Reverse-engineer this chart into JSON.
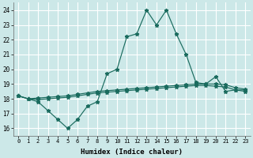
{
  "xlabel": "Humidex (Indice chaleur)",
  "bg_color": "#cce8e8",
  "grid_color": "#ffffff",
  "line_color": "#1a6b5e",
  "xlim": [
    -0.5,
    23.5
  ],
  "ylim": [
    15.5,
    24.5
  ],
  "yticks": [
    16,
    17,
    18,
    19,
    20,
    21,
    22,
    23,
    24
  ],
  "xticks": [
    0,
    1,
    2,
    3,
    4,
    5,
    6,
    7,
    8,
    9,
    10,
    11,
    12,
    13,
    14,
    15,
    16,
    17,
    18,
    19,
    20,
    21,
    22,
    23
  ],
  "x": [
    0,
    1,
    2,
    3,
    4,
    5,
    6,
    7,
    8,
    9,
    10,
    11,
    12,
    13,
    14,
    15,
    16,
    17,
    18,
    19,
    20,
    21,
    22,
    23
  ],
  "line_max": [
    18.2,
    18.0,
    17.8,
    17.2,
    16.6,
    16.0,
    16.6,
    17.5,
    17.8,
    19.7,
    20.0,
    22.2,
    22.4,
    24.0,
    23.0,
    24.0,
    22.4,
    21.0,
    19.1,
    19.0,
    19.5,
    18.5,
    18.6,
    18.6
  ],
  "line_avg": [
    18.2,
    18.0,
    18.05,
    18.1,
    18.15,
    18.2,
    18.3,
    18.4,
    18.5,
    18.55,
    18.6,
    18.65,
    18.7,
    18.75,
    18.8,
    18.85,
    18.9,
    18.95,
    19.0,
    19.0,
    19.0,
    18.95,
    18.75,
    18.65
  ],
  "line_min": [
    18.2,
    18.0,
    17.95,
    18.0,
    18.05,
    18.1,
    18.2,
    18.3,
    18.4,
    18.45,
    18.5,
    18.55,
    18.6,
    18.65,
    18.7,
    18.75,
    18.8,
    18.85,
    18.9,
    18.9,
    18.85,
    18.8,
    18.6,
    18.5
  ]
}
